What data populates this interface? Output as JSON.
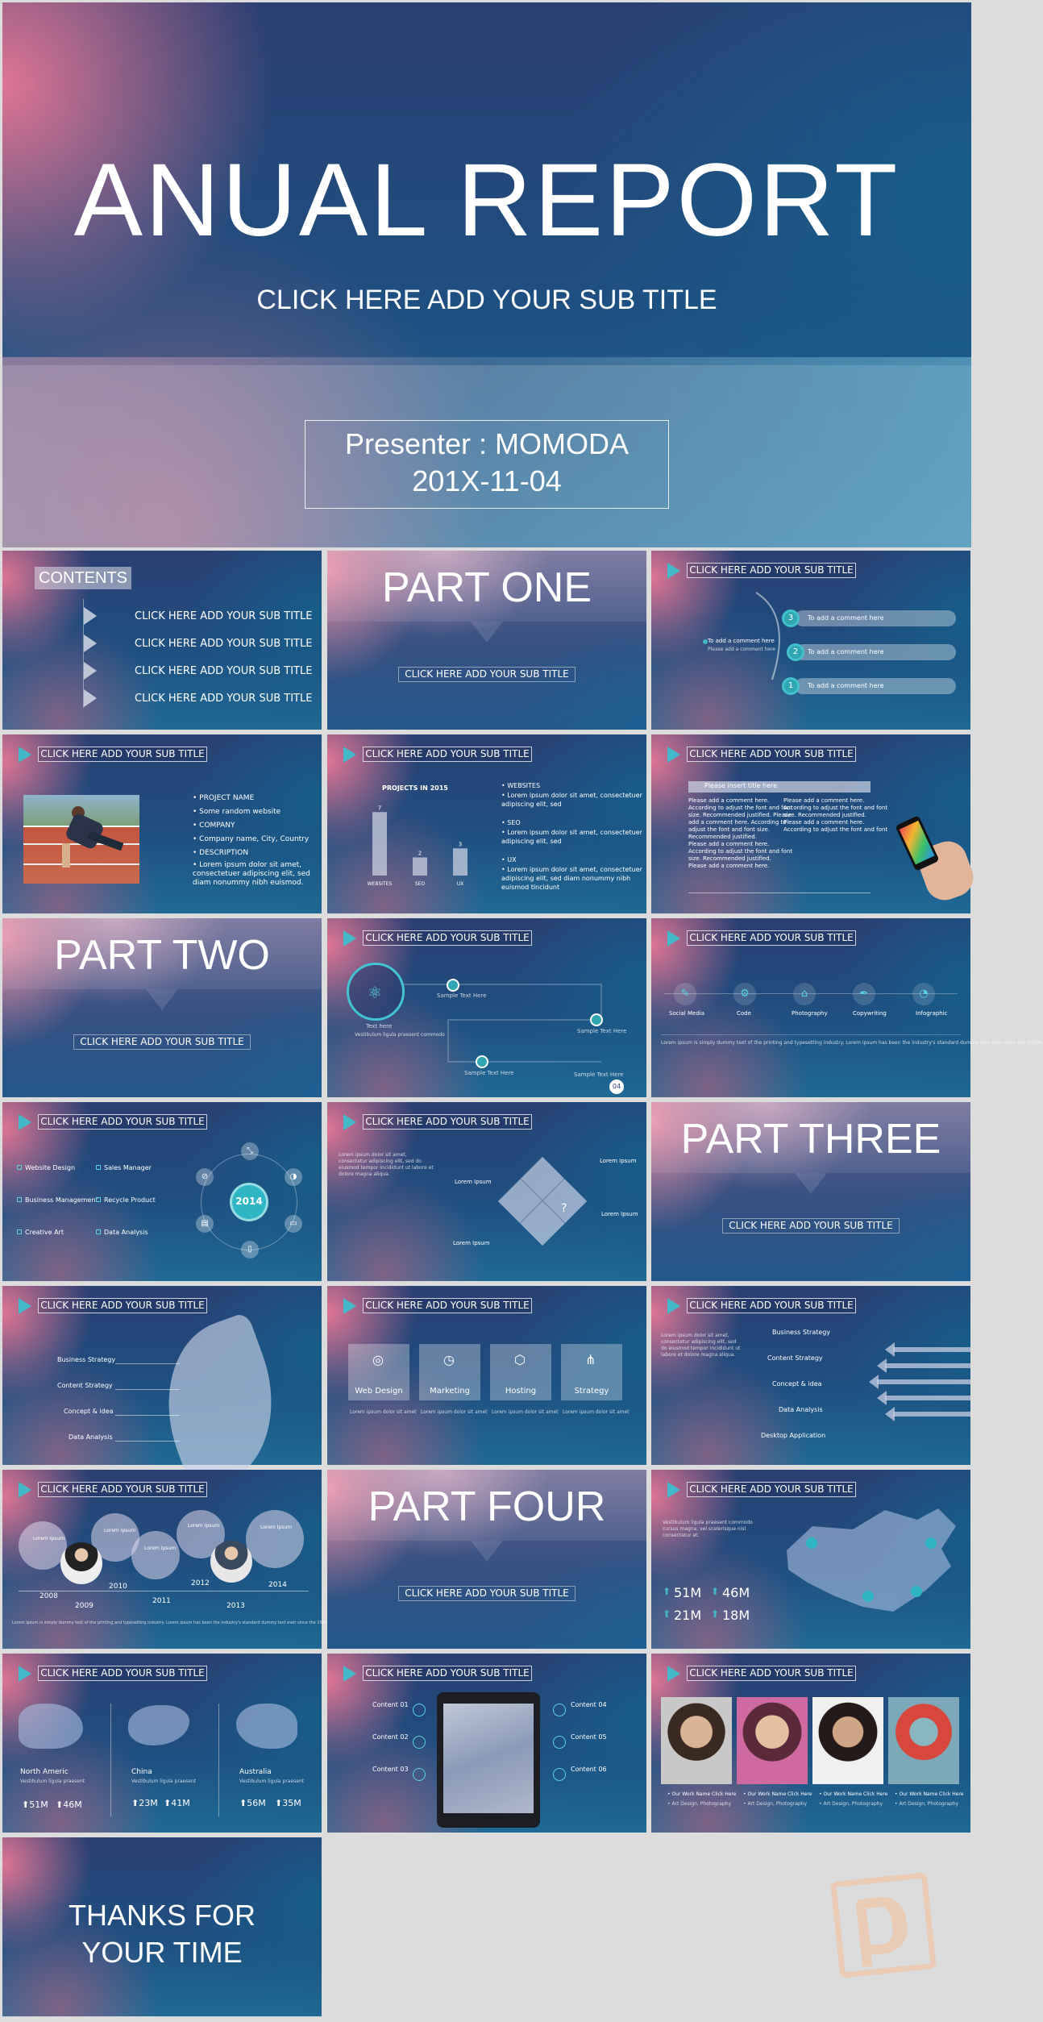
{
  "cover": {
    "title": "ANUAL REPORT",
    "subtitle": "CLICK HERE ADD YOUR SUB TITLE",
    "presenter": "Presenter : MOMODA",
    "date": "201X-11-04"
  },
  "subtitle": "CLICK HERE ADD YOUR SUB TITLE",
  "contents": {
    "title": "CONTENTS",
    "items": [
      "CLICK HERE ADD YOUR SUB TITLE",
      "CLICK HERE ADD YOUR SUB TITLE",
      "CLICK HERE ADD YOUR SUB TITLE",
      "CLICK HERE ADD YOUR SUB TITLE"
    ]
  },
  "parts": [
    "PART ONE",
    "PART TWO",
    "PART THREE",
    "PART FOUR"
  ],
  "comments": {
    "left": "To add a comment here",
    "left_body": "Please add a comment here",
    "items": [
      "To add a comment here",
      "To add a comment here",
      "To add a comment here"
    ],
    "nums": [
      "3",
      "2",
      "1"
    ]
  },
  "profile": [
    "• PROJECT NAME",
    "• Some random website",
    "• COMPANY",
    "• Company name, City, Country",
    "• DESCRIPTION",
    "• Lorem ipsum dolor sit amet,",
    "  consectetuer adipiscing elit, sed",
    "  diam nonummy nibh euismod."
  ],
  "projects": [
    "• WEBSITES",
    "• Lorem ipsum dolor sit amet, consectetuer",
    "  adipiscing elit, sed",
    "• SEO",
    "• Lorem ipsum dolor sit amet, consectetuer",
    "  adipiscing elit, sed",
    "• UX",
    "• Lorem ipsum dolor sit amet, consectetuer",
    "  adipiscing elit, sed diam nonummy nibh",
    "  euismod tincidunt"
  ],
  "chart_data": {
    "type": "bar",
    "title": "PROJECTS IN 2015",
    "categories": [
      "WEBSITES",
      "SEO",
      "UX"
    ],
    "values": [
      7,
      2,
      3
    ],
    "ylim": [
      0,
      8
    ],
    "color": "#c9cfe0"
  },
  "phone": {
    "title": "Please insert title here",
    "left": [
      "Please add a comment here.",
      "According to adjust the font and font",
      "size. Recommended justified. Please",
      "add a comment here. According to",
      "adjust the font and font size.",
      "Recommended justified.",
      "Please add a comment here.",
      "According to adjust the font and font",
      "size. Recommended justified.",
      "Please add a comment here."
    ],
    "right": [
      "Please add a comment here.",
      "According to adjust the font and font",
      "size. Recommended justified.",
      "Please add a comment here.",
      "According to adjust the font and font"
    ]
  },
  "timeline": {
    "main": "Text here",
    "body": "Vestibulum ligula praesent commodo",
    "label": "Sample Text Here",
    "num": "04"
  },
  "services": [
    "Social Media",
    "Code",
    "Photography",
    "Copywriting",
    "Infographic"
  ],
  "services_para": "Lorem ipsum is simply dummy text of the printing and typesetting industry. Lorem ipsum has been the industry's standard dummy text ever since the 1500s.",
  "y2014": {
    "year": "2014",
    "features": [
      "Website Design",
      "Business Management",
      "Creative Art",
      "Sales Manager",
      "Recycle Product",
      "Data Analysis"
    ]
  },
  "puzzle": {
    "para": "Lorem ipsum dolor sit amet, consectetur adipiscing elit, sed do eiusmod tempor incididunt ut labore et dolore magna aliqua.",
    "items": [
      "Lorem Ipsum",
      "Lorem Ipsum",
      "Lorem Ipsum",
      "Lorem Ipsum"
    ]
  },
  "leaf": [
    "Business Strategy",
    "Content Strategy",
    "Concept & idea",
    "Data Analysis"
  ],
  "cards": [
    "Web Design",
    "Marketing",
    "Hosting",
    "Strategy"
  ],
  "cards_desc": "Lorem ipsum dolor sit amet",
  "arrows": {
    "para": "Lorem ipsum dolor sit amet, consectetur adipiscing elit, sed do eiusmod tempor incididunt ut labore et dolore magna aliqua.",
    "items": [
      "Business Strategy",
      "Content Strategy",
      "Concept & idea",
      "Data Analysis",
      "Desktop Application"
    ]
  },
  "circles": {
    "label": "Lorem Ipsum",
    "years": [
      "2008",
      "2009",
      "2010",
      "2011",
      "2012",
      "2013",
      "2014"
    ],
    "para": "Lorem ipsum is simply dummy text of the printing and typesetting industry. Lorem ipsum has been the industry's standard dummy text ever since the 1500s."
  },
  "china": {
    "para": "Vestibulum ligula praesent commodo cursus magna, vel scelerisque nisl consectetur et.",
    "stats": [
      "51M",
      "46M",
      "21M",
      "18M"
    ]
  },
  "regions": [
    {
      "name": "North Americ",
      "body": "Vestibulum ligula praesent",
      "a": "⬆51M",
      "b": "⬆46M"
    },
    {
      "name": "China",
      "body": "Vestibulum ligula praesent",
      "a": "⬆23M",
      "b": "⬆41M"
    },
    {
      "name": "Australia",
      "body": "Vestibulum ligula praesent",
      "a": "⬆56M",
      "b": "⬆35M"
    }
  ],
  "tablet": {
    "items": [
      "Content 01",
      "Content 02",
      "Content 03",
      "Content 04",
      "Content 05",
      "Content 06"
    ]
  },
  "portfolio": {
    "caption": "• Our Work Name Click Here",
    "meta": "• Art Design, Photography"
  },
  "thanks": [
    "THANKS FOR",
    "YOUR TIME"
  ]
}
